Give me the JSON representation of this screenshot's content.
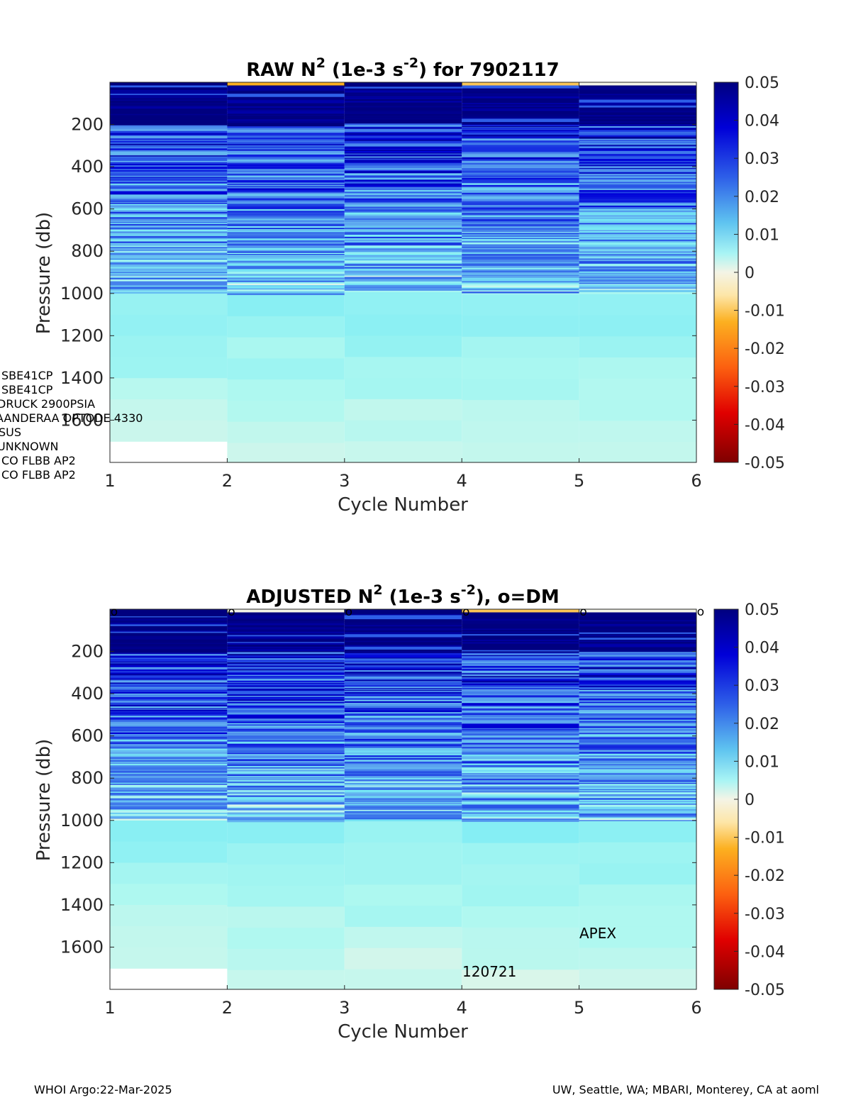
{
  "footer": {
    "left": "WHOI Argo:22-Mar-2025",
    "right": "UW, Seattle, WA; MBARI, Monterey, CA at aoml"
  },
  "sensor_notes": [
    "SBE41CP",
    "SBE41CP",
    "DRUCK 2900PSIA",
    "AANDERAA OPTODE 4330",
    "SUS",
    "UNKNOWN",
    "CO FLBB AP2",
    "CO FLBB AP2"
  ],
  "annotations": {
    "platform": "APEX",
    "id": "120721"
  },
  "colorbar": {
    "ticks": [
      "0.05",
      "0.04",
      "0.03",
      "0.02",
      "0.01",
      "0",
      "-0.01",
      "-0.02",
      "-0.03",
      "-0.04",
      "-0.05"
    ]
  },
  "chart_data": [
    {
      "type": "heatmap",
      "title_main": "RAW N",
      "title_sup1": "2",
      "title_mid": " (1e-3 s",
      "title_sup2": "-2",
      "title_end": ") for 7902117",
      "xlabel": "Cycle Number",
      "ylabel": "Pressure (db)",
      "xlim": [
        1,
        6
      ],
      "ylim": [
        1800,
        0
      ],
      "xticks": [
        "1",
        "2",
        "3",
        "4",
        "5",
        "6"
      ],
      "yticks": [
        "200",
        "400",
        "600",
        "800",
        "1000",
        "1200",
        "1400",
        "1600"
      ],
      "clim": [
        -0.05,
        0.05
      ],
      "colormap": "jet-with-light-center",
      "columns": [
        {
          "cycle": 1,
          "max_pressure": 1700,
          "surface_value": 0.05
        },
        {
          "cycle": 2,
          "max_pressure": 1800,
          "surface_value": -0.01
        },
        {
          "cycle": 3,
          "max_pressure": 1800,
          "surface_value": 0.05
        },
        {
          "cycle": 4,
          "max_pressure": 1800,
          "surface_value": -0.008
        },
        {
          "cycle": 5,
          "max_pressure": 1800,
          "surface_value": 0.0
        }
      ]
    },
    {
      "type": "heatmap",
      "title_main": "ADJUSTED N",
      "title_sup1": "2",
      "title_mid": " (1e-3 s",
      "title_sup2": "-2",
      "title_end": "), o=DM",
      "xlabel": "Cycle Number",
      "ylabel": "Pressure (db)",
      "xlim": [
        1,
        6
      ],
      "ylim": [
        1800,
        0
      ],
      "xticks": [
        "1",
        "2",
        "3",
        "4",
        "5",
        "6"
      ],
      "yticks": [
        "200",
        "400",
        "600",
        "800",
        "1000",
        "1200",
        "1400",
        "1600"
      ],
      "clim": [
        -0.05,
        0.05
      ],
      "dm_markers": [
        "o",
        "o",
        "o",
        "o",
        "o",
        "o"
      ],
      "columns": [
        {
          "cycle": 1,
          "max_pressure": 1700,
          "surface_value": 0.05
        },
        {
          "cycle": 2,
          "max_pressure": 1800,
          "surface_value": 0.0
        },
        {
          "cycle": 3,
          "max_pressure": 1800,
          "surface_value": 0.05
        },
        {
          "cycle": 4,
          "max_pressure": 1800,
          "surface_value": -0.008
        },
        {
          "cycle": 5,
          "max_pressure": 1800,
          "surface_value": 0.0
        }
      ]
    }
  ]
}
